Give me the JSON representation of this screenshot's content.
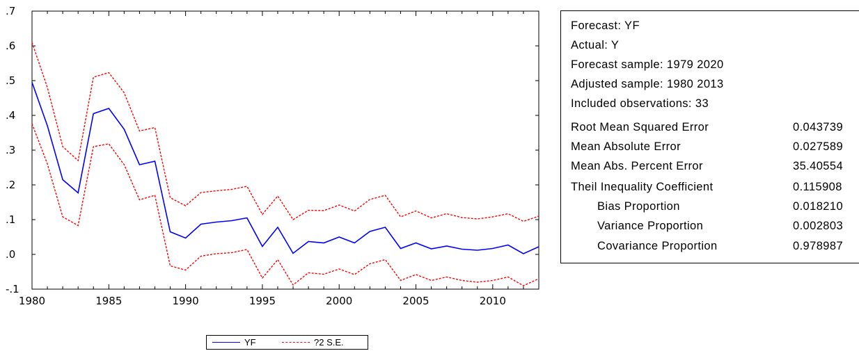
{
  "chart_data": {
    "type": "line",
    "title": "",
    "xlabel": "",
    "ylabel": "",
    "xlim": [
      1980,
      2013
    ],
    "ylim": [
      -0.1,
      0.7
    ],
    "x_ticks": [
      1980,
      1985,
      1990,
      1995,
      2000,
      2005,
      2010
    ],
    "x_tick_labels": [
      "1980",
      "1985",
      "1990",
      "1995",
      "2000",
      "2005",
      "2010"
    ],
    "y_ticks": [
      -0.1,
      0.0,
      0.1,
      0.2,
      0.3,
      0.4,
      0.5,
      0.6,
      0.7
    ],
    "y_tick_labels": [
      "-.1",
      ".0",
      ".1",
      ".2",
      ".3",
      ".4",
      ".5",
      ".6",
      ".7"
    ],
    "grid": false,
    "x": [
      1980,
      1981,
      1982,
      1983,
      1984,
      1985,
      1986,
      1987,
      1988,
      1989,
      1990,
      1991,
      1992,
      1993,
      1994,
      1995,
      1996,
      1997,
      1998,
      1999,
      2000,
      2001,
      2002,
      2003,
      2004,
      2005,
      2006,
      2007,
      2008,
      2009,
      2010,
      2011,
      2012,
      2013
    ],
    "series": [
      {
        "name": "YF",
        "color": "#0000ff",
        "style": "solid",
        "values": [
          0.495,
          0.37,
          0.215,
          0.177,
          0.405,
          0.42,
          0.36,
          0.258,
          0.268,
          0.065,
          0.047,
          0.087,
          0.093,
          0.097,
          0.105,
          0.023,
          0.078,
          0.003,
          0.037,
          0.033,
          0.05,
          0.033,
          0.066,
          0.078,
          0.017,
          0.033,
          0.016,
          0.024,
          0.015,
          0.012,
          0.017,
          0.027,
          0.002,
          0.022
        ]
      },
      {
        "name": "?2 S.E.",
        "color": "#ff0000",
        "style": "dashed",
        "values": [
          0.61,
          0.48,
          0.31,
          0.27,
          0.51,
          0.523,
          0.465,
          0.355,
          0.365,
          0.163,
          0.14,
          0.178,
          0.183,
          0.187,
          0.196,
          0.115,
          0.168,
          0.1,
          0.127,
          0.126,
          0.142,
          0.125,
          0.158,
          0.17,
          0.108,
          0.125,
          0.105,
          0.117,
          0.106,
          0.102,
          0.108,
          0.117,
          0.095,
          0.11
        ]
      },
      {
        "name": "",
        "color": "#ff0000",
        "style": "dashed",
        "values": [
          0.376,
          0.26,
          0.108,
          0.083,
          0.31,
          0.318,
          0.258,
          0.157,
          0.17,
          -0.033,
          -0.045,
          -0.005,
          0.002,
          0.005,
          0.014,
          -0.068,
          -0.015,
          -0.088,
          -0.053,
          -0.057,
          -0.042,
          -0.058,
          -0.027,
          -0.015,
          -0.075,
          -0.058,
          -0.075,
          -0.065,
          -0.075,
          -0.08,
          -0.075,
          -0.065,
          -0.09,
          -0.07
        ]
      }
    ],
    "legend": {
      "placement": "bottom-center",
      "entries": [
        "YF",
        "?2 S.E."
      ]
    }
  },
  "stats": {
    "lines": [
      "Forecast: YF",
      "Actual: Y",
      "Forecast sample: 1979 2020",
      "Adjusted sample: 1980 2013",
      "Included observations: 33"
    ],
    "rows": [
      {
        "label": "Root Mean Squared Error",
        "value": "0.043739",
        "indent": false
      },
      {
        "label": "Mean Absolute Error",
        "value": "0.027589",
        "indent": false
      },
      {
        "label": "Mean Abs. Percent Error",
        "value": "35.40554",
        "indent": false
      },
      {
        "label": "Theil Inequality Coefficient",
        "value": "0.115908",
        "indent": false
      },
      {
        "label": "Bias Proportion",
        "value": "0.018210",
        "indent": true
      },
      {
        "label": "Variance Proportion",
        "value": "0.002803",
        "indent": true
      },
      {
        "label": "Covariance Proportion",
        "value": "0.978987",
        "indent": true
      }
    ]
  }
}
